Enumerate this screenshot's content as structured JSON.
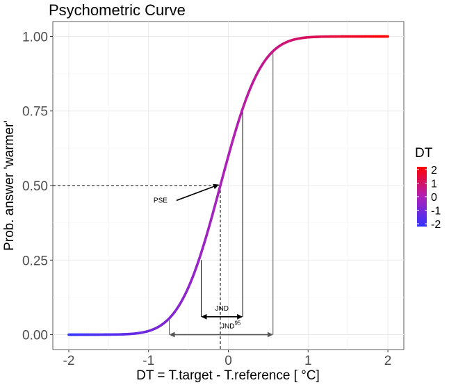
{
  "chart_data": {
    "type": "line",
    "title": "Psychometric Curve",
    "xlabel": "DT = T.target - T.reference [ °C]",
    "ylabel": "Prob. answer 'warmer'",
    "xlim": [
      -2.2,
      2.2
    ],
    "ylim": [
      -0.05,
      1.05
    ],
    "x_ticks": [
      -2,
      -1,
      0,
      1,
      2
    ],
    "x_tick_labels": [
      "-2",
      "-1",
      "0",
      "1",
      "2"
    ],
    "y_ticks": [
      0,
      0.25,
      0.5,
      0.75,
      1
    ],
    "y_tick_labels": [
      "0.00",
      "0.25",
      "0.50",
      "0.75",
      "1.00"
    ],
    "grid": true,
    "curve": {
      "mu": -0.1,
      "sigma": 0.4,
      "x_range": [
        -2,
        2
      ],
      "color_low": "#3333ff",
      "color_mid": "#b020b8",
      "color_high": "#ff0000"
    },
    "pse": {
      "x": -0.1,
      "y": 0.5,
      "label": "PSE"
    },
    "jnd": {
      "x0": -0.34,
      "x1": 0.18,
      "y_low": 0.25,
      "y_high": 0.75,
      "label": "JND"
    },
    "jnd95": {
      "x0": -0.74,
      "x1": 0.56,
      "y_low": 0.05,
      "y_high": 0.95,
      "label": "JND",
      "superscript": "95"
    },
    "legend": {
      "title": "DT",
      "position": "right",
      "ticks": [
        "2",
        "1",
        "0",
        "-1",
        "-2"
      ]
    }
  }
}
